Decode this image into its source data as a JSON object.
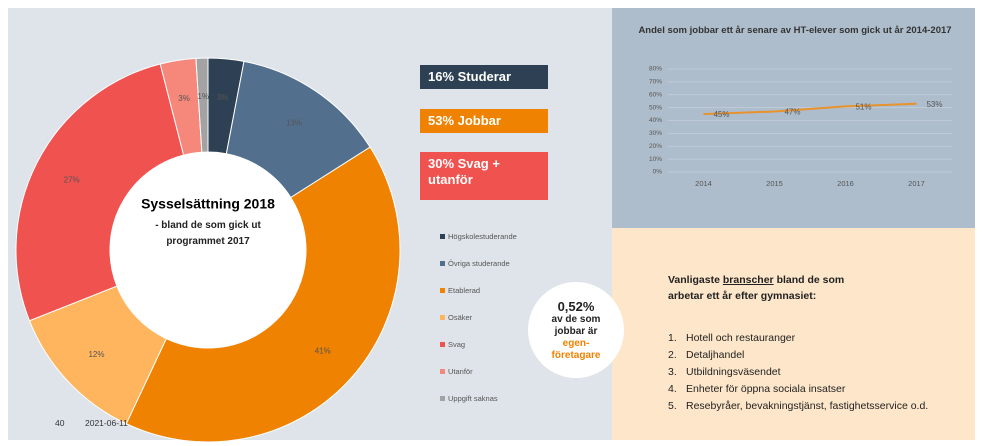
{
  "chart_data": [
    {
      "type": "donut",
      "title": "Sysselsättning 2018",
      "subtitle": "- bland de som gick ut programmet 2017",
      "categories": [
        "Högskolestuderande",
        "Övriga studerande",
        "Etablerad",
        "Osäker",
        "Svag",
        "Utanför",
        "Uppgift saknas"
      ],
      "values": [
        3,
        13,
        41,
        12,
        27,
        3,
        1
      ],
      "value_labels": [
        "3%",
        "13%",
        "41%",
        "12%",
        "27%",
        "3%",
        "1%"
      ],
      "colors": [
        "#2e4154",
        "#52708e",
        "#ef8200",
        "#ffb55e",
        "#ef524f",
        "#f5877b",
        "#a3a3a3"
      ]
    },
    {
      "type": "line",
      "title": "Andel som jobbar ett år senare av HT-elever som gick ut år 2014-2017",
      "categories": [
        "2014",
        "2015",
        "2016",
        "2017"
      ],
      "values": [
        45,
        47,
        51,
        53
      ],
      "value_labels": [
        "45%",
        "47%",
        "51%",
        "53%"
      ],
      "color": "#e8922c",
      "ylim": [
        0,
        80
      ],
      "yticks": [
        {
          "value": 0,
          "label": "0%"
        },
        {
          "value": 10,
          "label": "10%"
        },
        {
          "value": 20,
          "label": "20%"
        },
        {
          "value": 30,
          "label": "30%"
        },
        {
          "value": 40,
          "label": "40%"
        },
        {
          "value": 50,
          "label": "50%"
        },
        {
          "value": 60,
          "label": "60%"
        },
        {
          "value": 70,
          "label": "70%"
        },
        {
          "value": 80,
          "label": "80%"
        }
      ],
      "grid": true
    }
  ],
  "summary": [
    "16% Studerar",
    "53% Jobbar",
    "30% Svag + utanför"
  ],
  "bubble": {
    "value": "0,52%",
    "text": "av de som jobbar är",
    "highlight": "egen-företagare"
  },
  "industries": {
    "heading_pre": "Vanligaste",
    "heading_link": "branscher",
    "heading_post": "bland de som arbetar ett år efter gymnasiet:",
    "items": [
      {
        "num": "1.",
        "text": "Hotell och restauranger"
      },
      {
        "num": "2.",
        "text": "Detaljhandel"
      },
      {
        "num": "3.",
        "text": "Utbildningsväsendet"
      },
      {
        "num": "4.",
        "text": "Enheter för öppna sociala insatser"
      },
      {
        "num": "5.",
        "text": "Resebyråer, bevakningstjänst, fastighetsservice o.d."
      }
    ]
  },
  "footer": {
    "page": "40",
    "date": "2021-06-11"
  }
}
